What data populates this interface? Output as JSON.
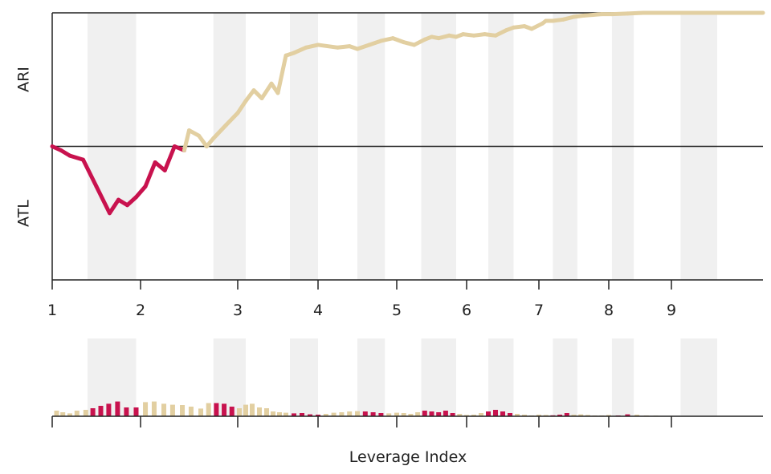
{
  "chart_data": {
    "type": "line",
    "top_label": "ARI",
    "bottom_label": "ATL",
    "xlabel": "Leverage Index",
    "x_ticks": [
      "1",
      "2",
      "3",
      "4",
      "5",
      "6",
      "7",
      "8",
      "9"
    ],
    "x_tick_values": [
      1,
      2,
      3,
      4,
      5,
      6,
      7,
      8,
      9
    ],
    "xlim": [
      1,
      10
    ],
    "ylim": [
      -1,
      1
    ],
    "baseline": 0,
    "colors": {
      "positive": "#e2cfa1",
      "negative": "#c8124e",
      "band": "#f0f0f0",
      "axis": "#222222"
    },
    "shaded_bands": [
      [
        1.4,
        1.95
      ],
      [
        2.75,
        3.1
      ],
      [
        3.65,
        4.0
      ],
      [
        4.5,
        4.85
      ],
      [
        5.35,
        5.85
      ],
      [
        6.3,
        6.65
      ],
      [
        7.2,
        7.55
      ],
      [
        8.05,
        8.4
      ],
      [
        9.1,
        9.5
      ]
    ],
    "series": [
      {
        "x": [
          1.0,
          1.1,
          1.2,
          1.35,
          1.5,
          1.65,
          1.75,
          1.85,
          1.95,
          2.05,
          2.15,
          2.25,
          2.35,
          2.45,
          2.5,
          2.6,
          2.68,
          2.75,
          2.88,
          3.0,
          3.1,
          3.2,
          3.3,
          3.42,
          3.5,
          3.6,
          3.7,
          3.85,
          4.0,
          4.25,
          4.4,
          4.5,
          4.65,
          4.8,
          4.95,
          5.1,
          5.25,
          5.4,
          5.5,
          5.6,
          5.75,
          5.85,
          5.95,
          6.1,
          6.25,
          6.4,
          6.55,
          6.65,
          6.8,
          6.9,
          7.05,
          7.1,
          7.2,
          7.35,
          7.5,
          7.65,
          7.9,
          8.05,
          8.3,
          8.55,
          8.9,
          9.4,
          10.0
        ],
        "y": [
          0.0,
          -0.03,
          -0.07,
          -0.1,
          -0.3,
          -0.5,
          -0.4,
          -0.44,
          -0.38,
          -0.3,
          -0.12,
          -0.18,
          0.0,
          -0.03,
          0.12,
          0.08,
          0.0,
          0.06,
          0.16,
          0.25,
          0.34,
          0.42,
          0.36,
          0.47,
          0.4,
          0.68,
          0.7,
          0.74,
          0.76,
          0.74,
          0.75,
          0.73,
          0.76,
          0.79,
          0.81,
          0.78,
          0.76,
          0.8,
          0.82,
          0.81,
          0.83,
          0.82,
          0.84,
          0.83,
          0.84,
          0.83,
          0.87,
          0.89,
          0.9,
          0.88,
          0.92,
          0.94,
          0.94,
          0.95,
          0.97,
          0.98,
          0.99,
          0.99,
          0.995,
          1.0,
          1.0,
          1.0,
          1.0
        ]
      }
    ],
    "bars": {
      "x": [
        1.05,
        1.12,
        1.2,
        1.28,
        1.38,
        1.46,
        1.55,
        1.64,
        1.74,
        1.84,
        1.95,
        2.05,
        2.14,
        2.24,
        2.33,
        2.43,
        2.52,
        2.62,
        2.7,
        2.78,
        2.86,
        2.94,
        3.02,
        3.1,
        3.18,
        3.27,
        3.36,
        3.44,
        3.52,
        3.6,
        3.7,
        3.8,
        3.9,
        4.0,
        4.1,
        4.2,
        4.3,
        4.4,
        4.5,
        4.6,
        4.7,
        4.8,
        4.9,
        5.0,
        5.1,
        5.2,
        5.3,
        5.4,
        5.5,
        5.6,
        5.7,
        5.8,
        5.9,
        6.0,
        6.1,
        6.2,
        6.3,
        6.4,
        6.5,
        6.6,
        6.7,
        6.8,
        6.9,
        7.0,
        7.1,
        7.2,
        7.3,
        7.4,
        7.5,
        7.6,
        7.7,
        7.8,
        7.9,
        8.0,
        8.15,
        8.3,
        8.45,
        8.6,
        8.75
      ],
      "values": [
        0.35,
        0.25,
        0.18,
        0.35,
        0.4,
        0.5,
        0.65,
        0.78,
        0.92,
        0.55,
        0.55,
        0.88,
        0.92,
        0.78,
        0.72,
        0.7,
        0.6,
        0.48,
        0.82,
        0.82,
        0.78,
        0.6,
        0.5,
        0.72,
        0.78,
        0.55,
        0.5,
        0.3,
        0.25,
        0.22,
        0.18,
        0.2,
        0.12,
        0.1,
        0.15,
        0.22,
        0.25,
        0.3,
        0.32,
        0.3,
        0.25,
        0.2,
        0.18,
        0.22,
        0.2,
        0.15,
        0.25,
        0.35,
        0.3,
        0.25,
        0.35,
        0.2,
        0.15,
        0.08,
        0.1,
        0.2,
        0.3,
        0.4,
        0.3,
        0.2,
        0.15,
        0.1,
        0.05,
        0.1,
        0.08,
        0.06,
        0.1,
        0.2,
        0.1,
        0.12,
        0.08,
        0.05,
        0.05,
        0.08,
        0.05,
        0.12,
        0.1,
        0.05,
        0.04
      ]
    }
  }
}
